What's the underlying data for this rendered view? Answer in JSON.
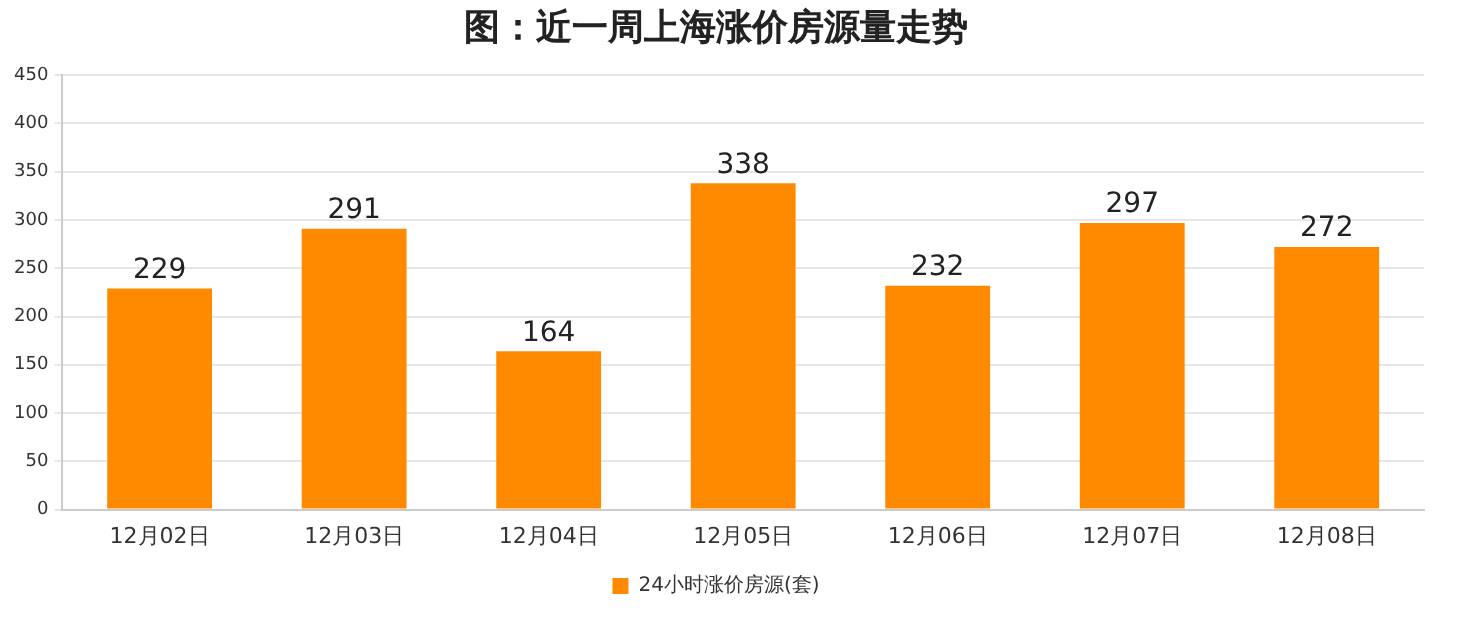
{
  "chart_data": {
    "type": "bar",
    "title": "图：近一周上海涨价房源量走势",
    "categories": [
      "12月02日",
      "12月03日",
      "12月04日",
      "12月05日",
      "12月06日",
      "12月07日",
      "12月08日"
    ],
    "series": [
      {
        "name": "24小时涨价房源(套)",
        "color": "#ff8a00",
        "values": [
          229,
          291,
          164,
          338,
          232,
          297,
          272
        ]
      }
    ],
    "ylim": [
      0,
      450
    ],
    "yticks": [
      0,
      50,
      100,
      150,
      200,
      250,
      300,
      350,
      400,
      450
    ],
    "grid": "y",
    "legend": "bottom",
    "data_labels": true
  }
}
